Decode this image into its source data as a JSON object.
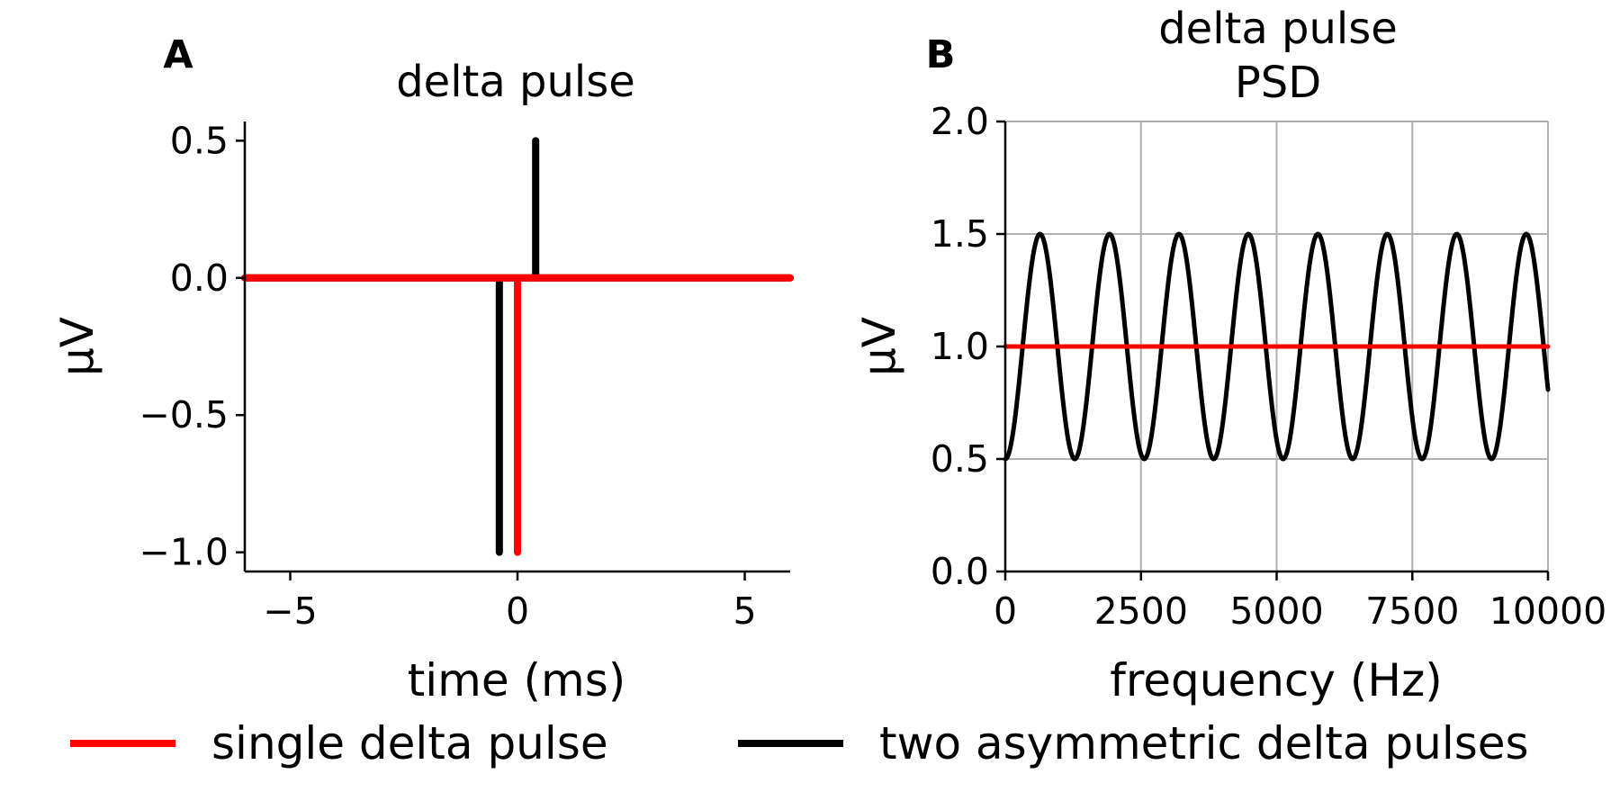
{
  "legend": {
    "items": [
      {
        "label": "single delta pulse",
        "color": "#ff0000"
      },
      {
        "label": "two asymmetric delta pulses",
        "color": "#000000"
      }
    ],
    "placement": "bottom"
  },
  "chart_data": [
    {
      "panel": "A",
      "type": "line",
      "title": "delta pulse",
      "xlabel": "time (ms)",
      "ylabel": "µV",
      "xlim": [
        -6,
        6
      ],
      "ylim": [
        -1.07,
        0.57
      ],
      "xticks": [
        -5,
        0,
        5
      ],
      "xtick_labels": [
        "−5",
        "0",
        "5"
      ],
      "yticks": [
        0.5,
        0.0,
        -0.5,
        -1.0
      ],
      "ytick_labels": [
        "0.5",
        "0.0",
        "−0.5",
        "−1.0"
      ],
      "grid": false,
      "series": [
        {
          "name": "two asymmetric delta pulses",
          "color": "#000000",
          "x": [
            -6,
            -0.4,
            -0.4,
            -0.4,
            0.4,
            0.4,
            0.4,
            6
          ],
          "y": [
            0,
            0,
            -1.0,
            0,
            0,
            0.5,
            0,
            0
          ]
        },
        {
          "name": "single delta pulse",
          "color": "#ff0000",
          "x": [
            -6,
            0,
            0,
            0,
            6
          ],
          "y": [
            0,
            0,
            -1.0,
            0,
            0
          ]
        }
      ]
    },
    {
      "panel": "B",
      "type": "line",
      "title": "delta pulse\nPSD",
      "title_lines": [
        "delta pulse",
        "PSD"
      ],
      "xlabel": "frequency (Hz)",
      "ylabel": "µV",
      "xlim": [
        0,
        10000
      ],
      "ylim": [
        0,
        2.0
      ],
      "xticks": [
        0,
        2500,
        5000,
        7500,
        10000
      ],
      "xtick_labels": [
        "0",
        "2500",
        "5000",
        "7500",
        "10000"
      ],
      "yticks": [
        0.0,
        0.5,
        1.0,
        1.5,
        2.0
      ],
      "ytick_labels": [
        "0.0",
        "0.5",
        "1.0",
        "1.5",
        "2.0"
      ],
      "grid": true,
      "series": [
        {
          "name": "two asymmetric delta pulses",
          "color": "#000000",
          "function": "1 - 0.5*cos(2*pi*f*period_inverse)",
          "period_hz": 1280,
          "x_range": [
            0,
            10000
          ],
          "y_min": 0.5,
          "y_max": 1.5
        },
        {
          "name": "single delta pulse",
          "color": "#ff0000",
          "x": [
            0,
            10000
          ],
          "y": [
            1.0,
            1.0
          ]
        }
      ]
    }
  ]
}
